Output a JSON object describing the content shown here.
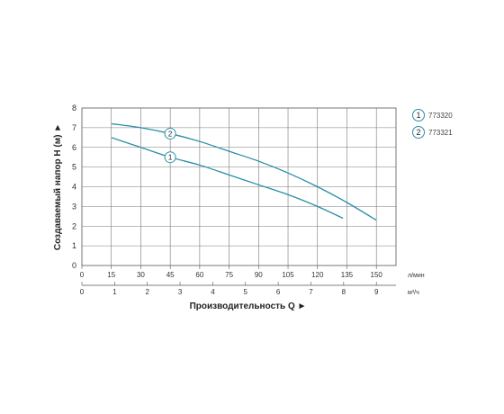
{
  "chart_data": {
    "type": "line",
    "title": "",
    "ylabel": "Создаваемый напор H (м) ►",
    "xlabel": "Производительность Q ►",
    "ylim": [
      0,
      8
    ],
    "yticks": [
      0,
      1,
      2,
      3,
      4,
      5,
      6,
      7,
      8
    ],
    "xlim": [
      0,
      160
    ],
    "x_ticks_lpm": [
      0,
      15,
      30,
      45,
      60,
      75,
      90,
      105,
      120,
      135,
      150
    ],
    "x_unit_lpm": "л/мин",
    "x_ticks_m3h": [
      0,
      1,
      2,
      3,
      4,
      5,
      6,
      7,
      8,
      9
    ],
    "x_unit_m3h": "м³/ч",
    "grid": true,
    "legend": "top-right",
    "series": [
      {
        "name": "773320",
        "marker": "1",
        "color": "#2a8ea6",
        "x": [
          15,
          30,
          45,
          60,
          75,
          90,
          105,
          120,
          133
        ],
        "y": [
          6.5,
          6.0,
          5.5,
          5.1,
          4.6,
          4.1,
          3.6,
          3.0,
          2.4
        ]
      },
      {
        "name": "773321",
        "marker": "2",
        "color": "#2a8ea6",
        "x": [
          15,
          30,
          45,
          60,
          75,
          90,
          105,
          120,
          135,
          150
        ],
        "y": [
          7.2,
          7.0,
          6.7,
          6.3,
          5.8,
          5.3,
          4.7,
          4.0,
          3.2,
          2.3
        ]
      }
    ]
  }
}
